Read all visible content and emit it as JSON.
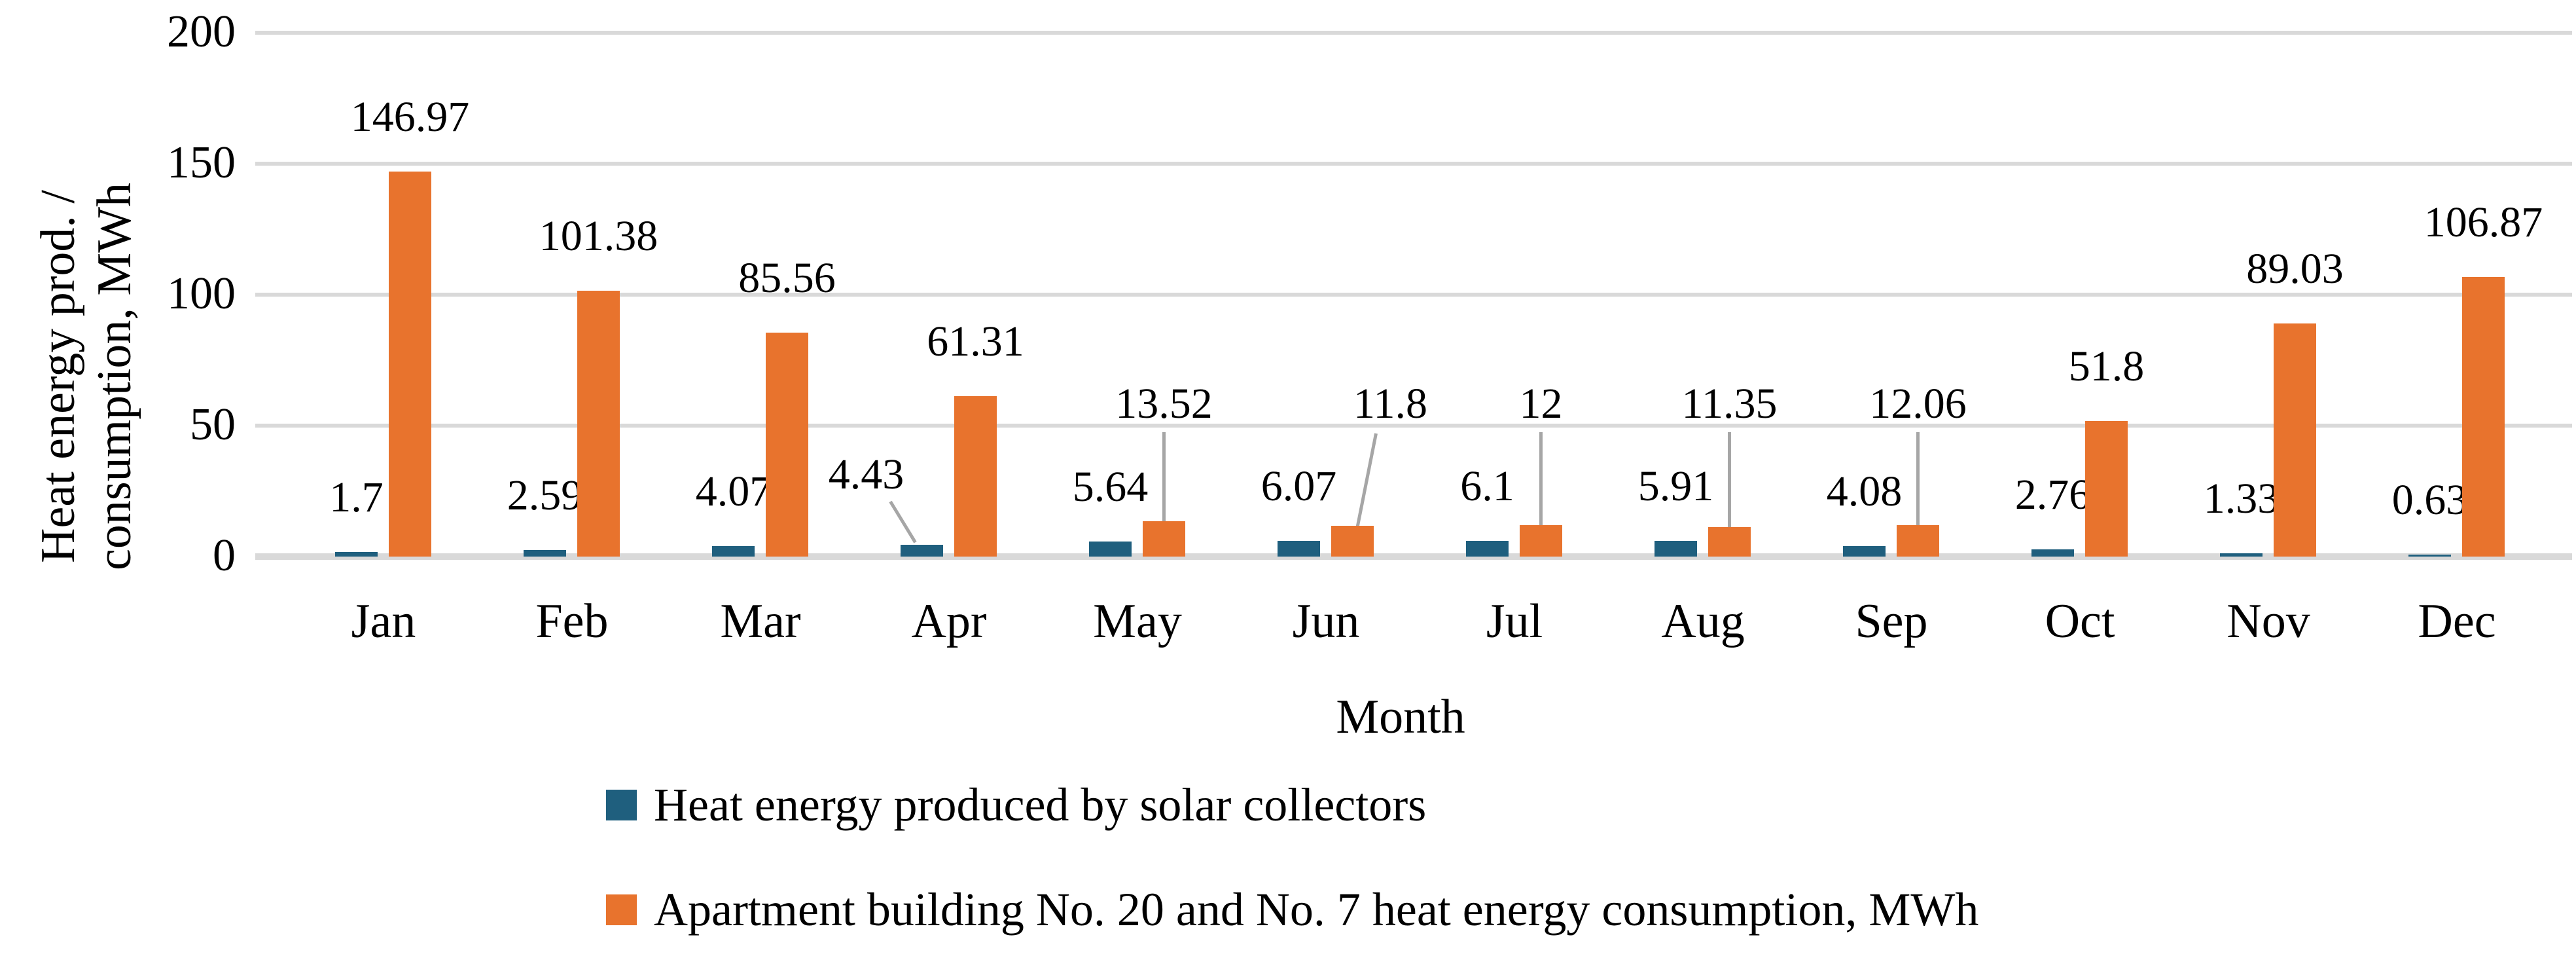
{
  "colors": {
    "series_blue": "#1F5F7E",
    "series_orange": "#E8732D",
    "gridline": "#D9D9D9",
    "axis_line": "#D9D9D9",
    "leader_line": "#A6A6A6",
    "text": "#000000",
    "background": "#FFFFFF"
  },
  "y_axis": {
    "title_line1": "Heat energy prod. /",
    "title_line2": "consumption, MWh",
    "ticks": [
      "0",
      "50",
      "100",
      "150",
      "200"
    ]
  },
  "x_axis": {
    "title": "Month"
  },
  "chart_data": {
    "type": "bar",
    "title": "",
    "categories": [
      "Jan",
      "Feb",
      "Mar",
      "Apr",
      "May",
      "Jun",
      "Jul",
      "Aug",
      "Sep",
      "Oct",
      "Nov",
      "Dec"
    ],
    "series": [
      {
        "name": "Heat energy produced by solar collectors",
        "color": "#1F5F7E",
        "values": [
          1.7,
          2.59,
          4.07,
          4.43,
          5.64,
          6.07,
          6.1,
          5.91,
          4.08,
          2.76,
          1.33,
          0.63
        ],
        "labels": [
          "1.7",
          "2.59",
          "4.07",
          "4.43",
          "5.64",
          "6.07",
          "6.1",
          "5.91",
          "4.08",
          "2.76",
          "1.33",
          "0.63"
        ],
        "label_callouts": {
          "3": "diagonal"
        }
      },
      {
        "name": "Apartment building No. 20 and No. 7 heat energy consumption, MWh",
        "color": "#E8732D",
        "values": [
          146.97,
          101.38,
          85.56,
          61.31,
          13.52,
          11.8,
          12,
          11.35,
          12.06,
          51.8,
          89.03,
          106.87
        ],
        "labels": [
          "146.97",
          "101.38",
          "85.56",
          "61.31",
          "13.52",
          "11.8",
          "12",
          "11.35",
          "12.06",
          "51.8",
          "89.03",
          "106.87"
        ],
        "label_callouts": {
          "4": "vertical",
          "5": "diagonal",
          "6": "vertical",
          "7": "vertical",
          "8": "vertical"
        }
      }
    ],
    "xlabel": "Month",
    "ylabel": "Heat energy prod. / consumption, MWh",
    "ylim": [
      0,
      200
    ],
    "y_tick_step": 50,
    "grid": true,
    "data_labels": true,
    "legend_position": "bottom-left"
  }
}
